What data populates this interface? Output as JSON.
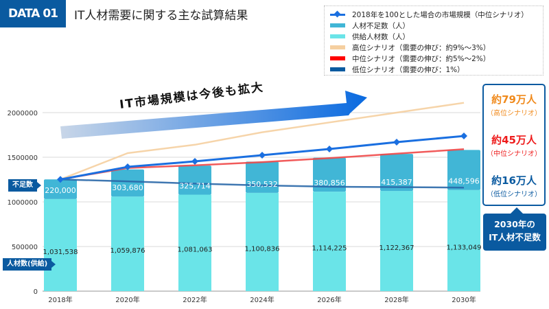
{
  "header": {
    "badge": "DATA 01",
    "title": "IT人材需要に関する主な試算結果"
  },
  "legend": [
    {
      "label": "2018年を100とした場合の市場規模（中位シナリオ）",
      "color": "#1a6fe0",
      "marker": "diamond"
    },
    {
      "label": "人材不足数（人）",
      "color": "#41b6d6"
    },
    {
      "label": "供給人材数（人）",
      "color": "#6ae4e8"
    },
    {
      "label": "高位シナリオ（需要の伸び：約9%～3%）",
      "color": "#f5cfa0"
    },
    {
      "label": "中位シナリオ（需要の伸び：約5%～2%）",
      "color": "#ff0000"
    },
    {
      "label": "低位シナリオ（需要の伸び：1%）",
      "color": "#0a5aa0"
    }
  ],
  "arrow_text": "IT市場規模は今後も拡大",
  "tags": {
    "shortage": "不足数",
    "supply": "人材数(供給)"
  },
  "callout": {
    "high": {
      "value": "約79万人",
      "label": "（高位シナリオ）",
      "color": "#f08a1c"
    },
    "mid": {
      "value": "約45万人",
      "label": "（中位シナリオ）",
      "color": "#ee1c1c"
    },
    "low": {
      "value": "約16万人",
      "label": "（低位シナリオ）",
      "color": "#0a5aa0"
    },
    "caption_line1": "2030年の",
    "caption_line2": "IT人材不足数"
  },
  "chart_data": {
    "type": "bar",
    "stacked": true,
    "categories": [
      "2018年",
      "2020年",
      "2022年",
      "2024年",
      "2026年",
      "2028年",
      "2030年"
    ],
    "ylim": [
      0,
      2000000
    ],
    "yticks": [
      "0",
      "500000",
      "1000000",
      "1500000",
      "2000000"
    ],
    "grid": true,
    "legend_position": "top-right",
    "series": [
      {
        "name": "供給人材数（人）",
        "type": "bar",
        "color": "#6ae4e8",
        "values": [
          1031538,
          1059876,
          1081063,
          1100836,
          1114225,
          1122367,
          1133049
        ],
        "labels": [
          "1,031,538",
          "1,059,876",
          "1,081,063",
          "1,100,836",
          "1,114,225",
          "1,122,367",
          "1,133,049"
        ]
      },
      {
        "name": "人材不足数（人）",
        "type": "bar",
        "color": "#41b6d6",
        "values": [
          220000,
          303680,
          325714,
          350532,
          380856,
          415387,
          448596
        ],
        "labels": [
          "220,000",
          "303,680",
          "325,714",
          "350,532",
          "380,856",
          "415,387",
          "448,596"
        ]
      },
      {
        "name": "高位シナリオ（需要の伸び：約9%～3%）",
        "type": "line",
        "color": "#f5cfa0",
        "values": [
          1251538,
          1546000,
          1640000,
          1780000,
          1890000,
          2000000,
          2110000
        ]
      },
      {
        "name": "中位シナリオ（需要の伸び：約5%～2%）",
        "type": "line",
        "color": "#f04848",
        "values": [
          1251538,
          1380000,
          1410000,
          1445000,
          1490000,
          1540000,
          1590000
        ]
      },
      {
        "name": "低位シナリオ（需要の伸び：1%）",
        "type": "line",
        "color": "#2a68a8",
        "values": [
          1251538,
          1230000,
          1205000,
          1185000,
          1170000,
          1165000,
          1160000
        ]
      },
      {
        "name": "2018年を100とした場合の市場規模（中位シナリオ）",
        "type": "line",
        "color": "#1a6fe0",
        "marker": "diamond",
        "values": [
          1251538,
          1392000,
          1454000,
          1523000,
          1592000,
          1669000,
          1738000
        ]
      }
    ]
  }
}
